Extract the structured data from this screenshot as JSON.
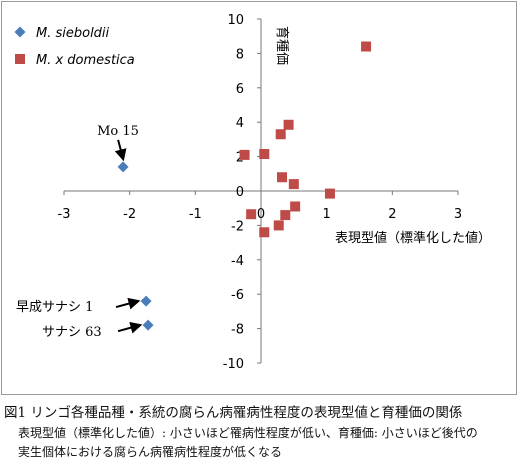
{
  "chart_data": {
    "type": "scatter",
    "xlim": [
      -3,
      3
    ],
    "ylim": [
      -10,
      10
    ],
    "x_ticks": [
      -3,
      -2,
      -1,
      0,
      1,
      2,
      3
    ],
    "y_ticks": [
      -10,
      -8,
      -6,
      -4,
      -2,
      0,
      2,
      4,
      6,
      8,
      10
    ],
    "xlabel": "表現型値（標準化した値）",
    "ylabel": "育種価",
    "grid": false,
    "legend": "top-left",
    "series": [
      {
        "name": "M. sieboldii",
        "marker": "diamond",
        "color": "#4a7ebb",
        "points": [
          {
            "x": -2.1,
            "y": 1.4
          },
          {
            "x": -1.75,
            "y": -6.4
          },
          {
            "x": -1.72,
            "y": -7.8
          }
        ]
      },
      {
        "name": "M. x domestica",
        "marker": "square",
        "color": "#be4b48",
        "points": [
          {
            "x": 1.6,
            "y": 8.4
          },
          {
            "x": 0.42,
            "y": 3.85
          },
          {
            "x": 0.3,
            "y": 3.3
          },
          {
            "x": -0.25,
            "y": 2.1
          },
          {
            "x": 0.05,
            "y": 2.15
          },
          {
            "x": 0.32,
            "y": 0.8
          },
          {
            "x": 0.5,
            "y": 0.4
          },
          {
            "x": 1.05,
            "y": -0.15
          },
          {
            "x": 0.52,
            "y": -0.9
          },
          {
            "x": 0.37,
            "y": -1.4
          },
          {
            "x": -0.15,
            "y": -1.35
          },
          {
            "x": 0.27,
            "y": -2.0
          },
          {
            "x": 0.05,
            "y": -2.4
          }
        ]
      }
    ],
    "annotations": [
      {
        "text": "Mo 15",
        "x": -2.1,
        "y": 1.4,
        "arrow": "down"
      },
      {
        "text": "早成サナシ 1",
        "x": -1.75,
        "y": -6.4,
        "arrow": "right"
      },
      {
        "text": "サナシ 63",
        "x": -1.72,
        "y": -7.8,
        "arrow": "right"
      }
    ]
  },
  "caption": {
    "title": "図1  リンゴ各種品種・系統の腐らん病罹病性程度の表現型値と育種価の関係",
    "note1": "表現型値（標準化した値）: 小さいほど罹病性程度が低い、育種価: 小さいほど後代の",
    "note2": "実生個体における腐らん病罹病性程度が低くなる"
  }
}
